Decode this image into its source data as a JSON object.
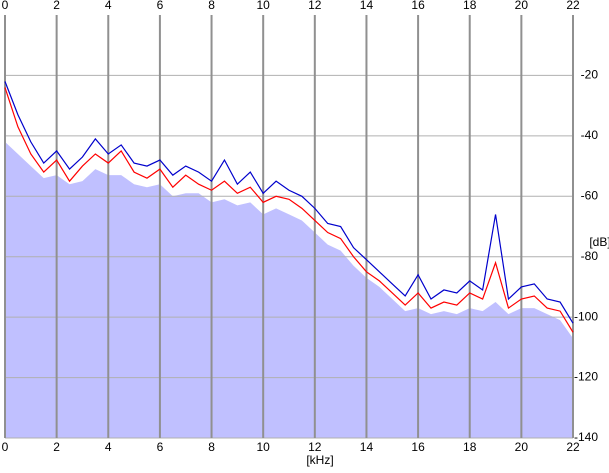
{
  "chart_data": {
    "type": "line",
    "x_label": "[kHz]",
    "y_label": "[dB]",
    "xlim": [
      0,
      22
    ],
    "ylim": [
      -140,
      0
    ],
    "xticks": [
      0,
      2,
      4,
      6,
      8,
      10,
      12,
      14,
      16,
      18,
      20,
      22
    ],
    "yticks": [
      -20,
      -40,
      -60,
      -80,
      -100,
      -120,
      -140
    ],
    "grid": true,
    "x": [
      0,
      0.5,
      1,
      1.5,
      2,
      2.5,
      3,
      3.5,
      4,
      4.5,
      5,
      5.5,
      6,
      6.5,
      7,
      7.5,
      8,
      8.5,
      9,
      9.5,
      10,
      10.5,
      11,
      11.5,
      12,
      12.5,
      13,
      13.5,
      14,
      14.5,
      15,
      15.5,
      16,
      16.5,
      17,
      17.5,
      18,
      18.5,
      19,
      19.5,
      20,
      20.5,
      21,
      21.5,
      22
    ],
    "fill": {
      "color": "#c0c0ff",
      "values": [
        -42,
        -46,
        -50,
        -54,
        -53,
        -56,
        -55,
        -51,
        -53,
        -53,
        -56,
        -57,
        -56,
        -60,
        -59,
        -59,
        -62,
        -61,
        -63,
        -62,
        -66,
        -64,
        -66,
        -68,
        -72,
        -76,
        -78,
        -83,
        -87,
        -90,
        -94,
        -98,
        -97,
        -99,
        -98,
        -99,
        -97,
        -98,
        -95,
        -99,
        -97,
        -97,
        -99,
        -101,
        -107
      ]
    },
    "series": [
      {
        "color": "#ff0000",
        "values": [
          -24,
          -37,
          -46,
          -52,
          -48,
          -55,
          -50,
          -46,
          -49,
          -45,
          -52,
          -54,
          -51,
          -57,
          -53,
          -56,
          -58,
          -55,
          -59,
          -57,
          -62,
          -60,
          -61,
          -64,
          -68,
          -72,
          -74,
          -80,
          -85,
          -88,
          -92,
          -96,
          -92,
          -97,
          -95,
          -96,
          -92,
          -94,
          -82,
          -97,
          -94,
          -93,
          -97,
          -98,
          -105
        ]
      },
      {
        "color": "#0000cc",
        "values": [
          -22,
          -33,
          -42,
          -49,
          -45,
          -51,
          -47,
          -41,
          -46,
          -43,
          -49,
          -50,
          -48,
          -53,
          -50,
          -52,
          -55,
          -48,
          -56,
          -52,
          -59,
          -55,
          -58,
          -60,
          -64,
          -69,
          -70,
          -77,
          -81,
          -85,
          -89,
          -93,
          -86,
          -94,
          -91,
          -92,
          -88,
          -91,
          -66,
          -94,
          -90,
          -89,
          -94,
          -95,
          -102
        ]
      }
    ]
  }
}
